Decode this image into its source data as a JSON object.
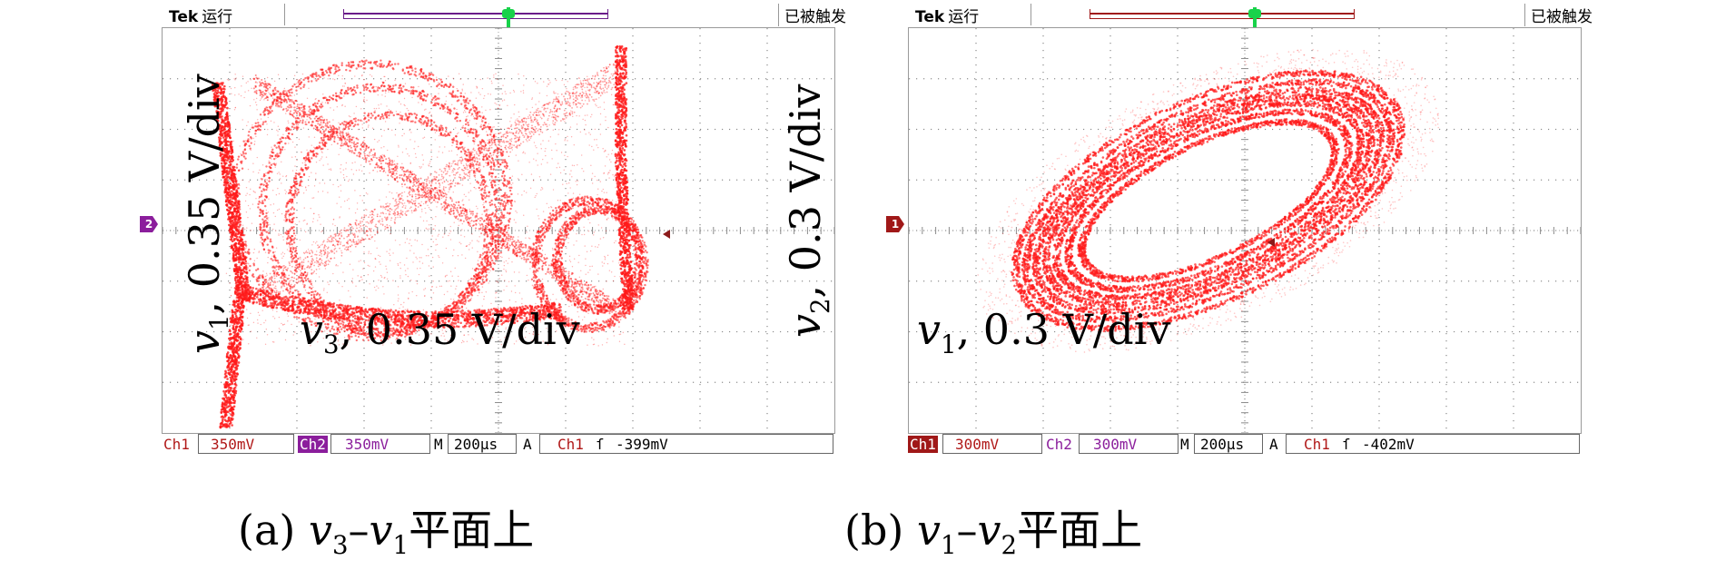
{
  "colors": {
    "trace": "#ff1a1a",
    "ch1": "#b01818",
    "ch2": "#8b1e9c",
    "grid": "#8a8a8a",
    "trigger_marker": "#18d24a"
  },
  "panels": [
    {
      "brand": "Tek",
      "run_status": "运行",
      "trigger_status": "已被触发",
      "channel_marker": "2",
      "ch1_label": "Ch1",
      "ch1_scale": "350mV",
      "ch2_label": "Ch2",
      "ch2_scale": "350mV",
      "m_label": "M",
      "timebase": "200μs",
      "a_label": "A",
      "trig_source": "Ch1",
      "trig_slope": "ſ",
      "trig_level": "-399mV",
      "y_var": "v",
      "y_sub": "1",
      "y_scale": ", 0.35 V/div",
      "x_var": "v",
      "x_sub": "3",
      "x_scale": ", 0.35 V/div",
      "caption_prefix": "(a) ",
      "caption_v1": "v",
      "caption_s1": "3",
      "caption_dash": "–",
      "caption_v2": "v",
      "caption_s2": "1",
      "caption_suffix": "平面上"
    },
    {
      "brand": "Tek",
      "run_status": "运行",
      "trigger_status": "已被触发",
      "channel_marker": "1",
      "ch1_label": "Ch1",
      "ch1_scale": "300mV",
      "ch2_label": "Ch2",
      "ch2_scale": "300mV",
      "m_label": "M",
      "timebase": "200μs",
      "a_label": "A",
      "trig_source": "Ch1",
      "trig_slope": "ſ",
      "trig_level": "-402mV",
      "y_var": "v",
      "y_sub": "2",
      "y_scale": ", 0.3 V/div",
      "x_var": "v",
      "x_sub": "1",
      "x_scale": ", 0.3 V/div",
      "caption_prefix": "(b) ",
      "caption_v1": "v",
      "caption_s1": "1",
      "caption_dash": "–",
      "caption_v2": "v",
      "caption_s2": "2",
      "caption_suffix": "平面上"
    }
  ]
}
